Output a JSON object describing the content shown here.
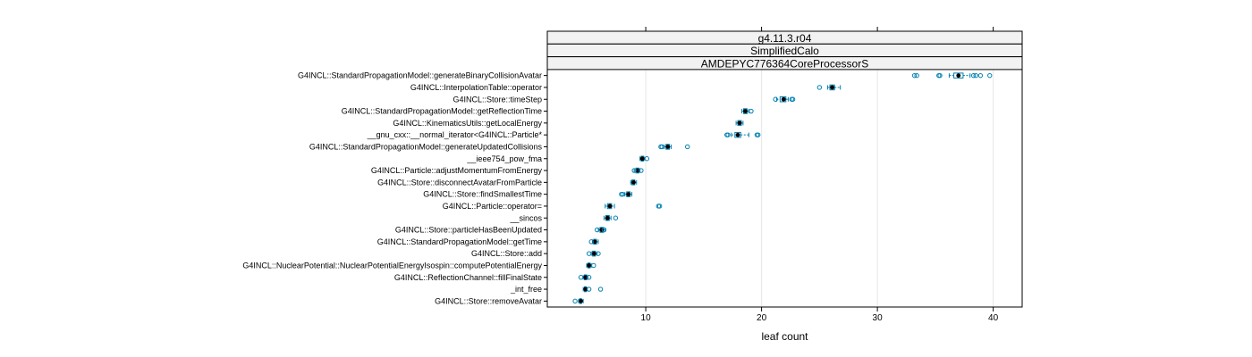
{
  "chart_data": {
    "type": "boxplot",
    "strips": [
      "g4.11.3.r04",
      "SimplifiedCalo",
      "AMDEPYC776364CoreProcessorS"
    ],
    "xlabel": "leaf count",
    "ylabel": "",
    "xlim": [
      1.5,
      42.5
    ],
    "x_ticks": [
      10,
      20,
      30,
      40
    ],
    "grid": true,
    "colors": {
      "box": "#0080b0",
      "median": "#000000",
      "outlier": "#0080b0",
      "strip_bg": "#f2f2f2",
      "grid": "#e6e6e6"
    },
    "categories": [
      "G4INCL::StandardPropagationModel::generateBinaryCollisionAvatar",
      "G4INCL::InterpolationTable::operator",
      "G4INCL::Store::timeStep",
      "G4INCL::StandardPropagationModel::getReflectionTime",
      "G4INCL::KinematicsUtils::getLocalEnergy",
      "__gnu_cxx::__normal_iterator<G4INCL::Particle*",
      "G4INCL::StandardPropagationModel::generateUpdatedCollisions",
      "__ieee754_pow_fma",
      "G4INCL::Particle::adjustMomentumFromEnergy",
      "G4INCL::Store::disconnectAvatarFromParticle",
      "G4INCL::Store::findSmallestTime",
      "G4INCL::Particle::operator=",
      "__sincos",
      "G4INCL::Store::particleHasBeenUpdated",
      "G4INCL::StandardPropagationModel::getTime",
      "G4INCL::Store::add",
      "G4INCL::NuclearPotential::NuclearPotentialEnergyIsospin::computePotentialEnergy",
      "G4INCL::ReflectionChannel::fillFinalState",
      "_int_free",
      "G4INCL::Store::removeAvatar"
    ],
    "boxes": [
      {
        "min": 36.2,
        "q1": 36.6,
        "median": 37.0,
        "q3": 37.4,
        "max": 38.0,
        "outliers": [
          33.2,
          33.4,
          35.3,
          35.4,
          38.3,
          38.5,
          38.9,
          39.7
        ]
      },
      {
        "min": 25.7,
        "q1": 25.9,
        "median": 26.1,
        "q3": 26.3,
        "max": 26.8,
        "outliers": [
          25.0
        ]
      },
      {
        "min": 21.3,
        "q1": 21.6,
        "median": 21.9,
        "q3": 22.1,
        "max": 22.3,
        "outliers": [
          21.2,
          22.6,
          22.7
        ]
      },
      {
        "min": 18.3,
        "q1": 18.45,
        "median": 18.6,
        "q3": 18.75,
        "max": 18.9,
        "outliers": [
          19.1
        ]
      },
      {
        "min": 17.8,
        "q1": 17.95,
        "median": 18.1,
        "q3": 18.25,
        "max": 18.4,
        "outliers": []
      },
      {
        "min": 17.4,
        "q1": 17.7,
        "median": 17.95,
        "q3": 18.2,
        "max": 18.9,
        "outliers": [
          17.0,
          17.1,
          19.6,
          19.7
        ]
      },
      {
        "min": 11.6,
        "q1": 11.75,
        "median": 11.9,
        "q3": 12.05,
        "max": 12.2,
        "outliers": [
          11.3,
          11.4,
          13.6
        ]
      },
      {
        "min": 9.5,
        "q1": 9.6,
        "median": 9.7,
        "q3": 9.8,
        "max": 9.9,
        "outliers": [
          10.1
        ]
      },
      {
        "min": 9.0,
        "q1": 9.15,
        "median": 9.3,
        "q3": 9.4,
        "max": 9.5,
        "outliers": [
          9.0,
          9.6
        ]
      },
      {
        "min": 8.7,
        "q1": 8.8,
        "median": 8.95,
        "q3": 9.05,
        "max": 9.2,
        "outliers": []
      },
      {
        "min": 8.2,
        "q1": 8.35,
        "median": 8.5,
        "q3": 8.65,
        "max": 8.8,
        "outliers": [
          7.9,
          8.0
        ]
      },
      {
        "min": 6.5,
        "q1": 6.7,
        "median": 6.9,
        "q3": 7.05,
        "max": 7.3,
        "outliers": [
          11.1,
          11.2
        ]
      },
      {
        "min": 6.4,
        "q1": 6.55,
        "median": 6.7,
        "q3": 6.85,
        "max": 7.0,
        "outliers": [
          7.4
        ]
      },
      {
        "min": 5.9,
        "q1": 6.05,
        "median": 6.2,
        "q3": 6.35,
        "max": 6.5,
        "outliers": [
          5.8,
          6.4
        ]
      },
      {
        "min": 5.4,
        "q1": 5.5,
        "median": 5.6,
        "q3": 5.75,
        "max": 5.9,
        "outliers": [
          5.3
        ]
      },
      {
        "min": 5.3,
        "q1": 5.4,
        "median": 5.55,
        "q3": 5.65,
        "max": 5.8,
        "outliers": [
          5.1,
          5.9
        ]
      },
      {
        "min": 4.9,
        "q1": 5.0,
        "median": 5.1,
        "q3": 5.2,
        "max": 5.3,
        "outliers": [
          5.5
        ]
      },
      {
        "min": 4.6,
        "q1": 4.7,
        "median": 4.8,
        "q3": 4.9,
        "max": 5.0,
        "outliers": [
          4.4,
          5.1
        ]
      },
      {
        "min": 4.6,
        "q1": 4.7,
        "median": 4.8,
        "q3": 4.85,
        "max": 4.95,
        "outliers": [
          5.1,
          6.1
        ]
      },
      {
        "min": 4.2,
        "q1": 4.3,
        "median": 4.4,
        "q3": 4.45,
        "max": 4.6,
        "outliers": [
          3.9
        ]
      }
    ]
  }
}
